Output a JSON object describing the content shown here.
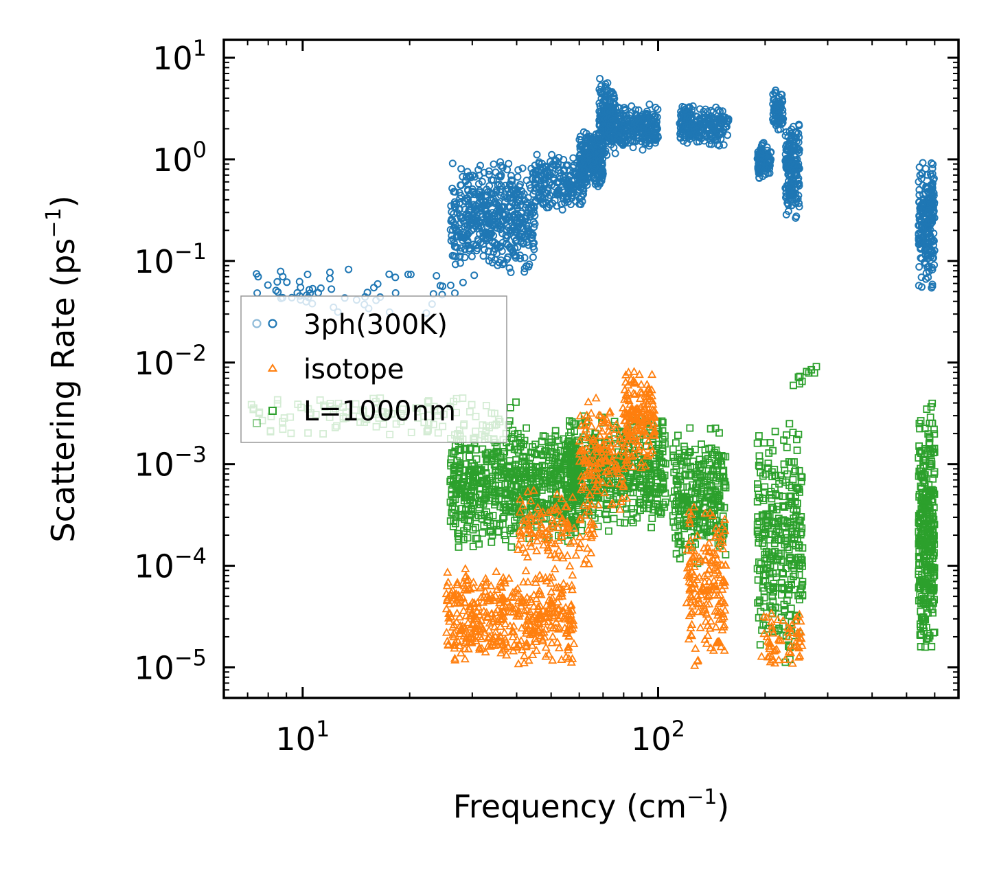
{
  "chart_data": {
    "type": "scatter",
    "xscale": "log",
    "yscale": "log",
    "xlim": [
      6.0,
      700
    ],
    "ylim": [
      5e-06,
      15
    ],
    "xlabel": "Frequency (cm",
    "xlabel_sup": "−1",
    "xlabel_tail": ")",
    "ylabel": "Scattering Rate (ps",
    "ylabel_sup": "−1",
    "ylabel_tail": ")",
    "x_ticks": [
      {
        "base": "10",
        "exp": "1",
        "value": 10
      },
      {
        "base": "10",
        "exp": "2",
        "value": 100
      }
    ],
    "y_ticks": [
      {
        "base": "10",
        "exp": "1",
        "value": 10
      },
      {
        "base": "10",
        "exp": "0",
        "value": 1
      },
      {
        "base": "10",
        "exp": "−1",
        "value": 0.1
      },
      {
        "base": "10",
        "exp": "−2",
        "value": 0.01
      },
      {
        "base": "10",
        "exp": "−3",
        "value": 0.001
      },
      {
        "base": "10",
        "exp": "−4",
        "value": 0.0001
      },
      {
        "base": "10",
        "exp": "−5",
        "value": 1e-05
      }
    ],
    "legend": {
      "position": "center-left",
      "entries": [
        "3ph(300K)",
        "isotope",
        "L=1000nm"
      ]
    },
    "series": [
      {
        "name": "3ph(300K)",
        "marker": "circle",
        "color": "#1f77b4",
        "clusters": [
          {
            "x": [
              7,
              30
            ],
            "y": [
              0.03,
              0.1
            ],
            "n": 60
          },
          {
            "x": [
              26,
              45
            ],
            "y": [
              0.07,
              1.0
            ],
            "n": 500
          },
          {
            "x": [
              45,
              62
            ],
            "y": [
              0.3,
              1.2
            ],
            "n": 200
          },
          {
            "x": [
              60,
              70
            ],
            "y": [
              0.5,
              2.0
            ],
            "n": 250
          },
          {
            "x": [
              68,
              76
            ],
            "y": [
              1.0,
              7.5
            ],
            "n": 150
          },
          {
            "x": [
              72,
              100
            ],
            "y": [
              1.2,
              3.5
            ],
            "n": 250
          },
          {
            "x": [
              115,
              158
            ],
            "y": [
              1.3,
              3.5
            ],
            "n": 220
          },
          {
            "x": [
              190,
              208
            ],
            "y": [
              0.6,
              1.5
            ],
            "n": 90
          },
          {
            "x": [
              210,
              225
            ],
            "y": [
              1.8,
              5.0
            ],
            "n": 80
          },
          {
            "x": [
              228,
              250
            ],
            "y": [
              0.25,
              2.5
            ],
            "n": 160
          },
          {
            "x": [
              540,
              600
            ],
            "y": [
              0.05,
              1.2
            ],
            "n": 220
          }
        ]
      },
      {
        "name": "isotope",
        "marker": "triangle",
        "color": "#ff7f0e",
        "clusters": [
          {
            "x": [
              25,
              58
            ],
            "y": [
              1e-05,
              0.0001
            ],
            "n": 450
          },
          {
            "x": [
              40,
              66
            ],
            "y": [
              8e-05,
              0.0006
            ],
            "n": 120
          },
          {
            "x": [
              60,
              82
            ],
            "y": [
              0.0003,
              0.005
            ],
            "n": 150
          },
          {
            "x": [
              80,
              98
            ],
            "y": [
              0.0008,
              0.01
            ],
            "n": 150
          },
          {
            "x": [
              120,
              155
            ],
            "y": [
              1e-05,
              0.0005
            ],
            "n": 180
          },
          {
            "x": [
              195,
              255
            ],
            "y": [
              1e-05,
              4e-05
            ],
            "n": 60
          }
        ]
      },
      {
        "name": "L=1000nm",
        "marker": "square",
        "color": "#2ca02c",
        "clusters": [
          {
            "x": [
              7,
              40
            ],
            "y": [
              0.0017,
              0.005
            ],
            "n": 120
          },
          {
            "x": [
              26,
              60
            ],
            "y": [
              0.00015,
              0.0025
            ],
            "n": 700
          },
          {
            "x": [
              55,
              105
            ],
            "y": [
              0.0002,
              0.0035
            ],
            "n": 500
          },
          {
            "x": [
              110,
              155
            ],
            "y": [
              0.0001,
              0.0025
            ],
            "n": 280
          },
          {
            "x": [
              190,
              255
            ],
            "y": [
              1e-05,
              0.0035
            ],
            "n": 320
          },
          {
            "x": [
              240,
              280
            ],
            "y": [
              0.005,
              0.01
            ],
            "n": 10
          },
          {
            "x": [
              540,
              600
            ],
            "y": [
              1e-05,
              0.005
            ],
            "n": 320
          }
        ]
      }
    ]
  }
}
